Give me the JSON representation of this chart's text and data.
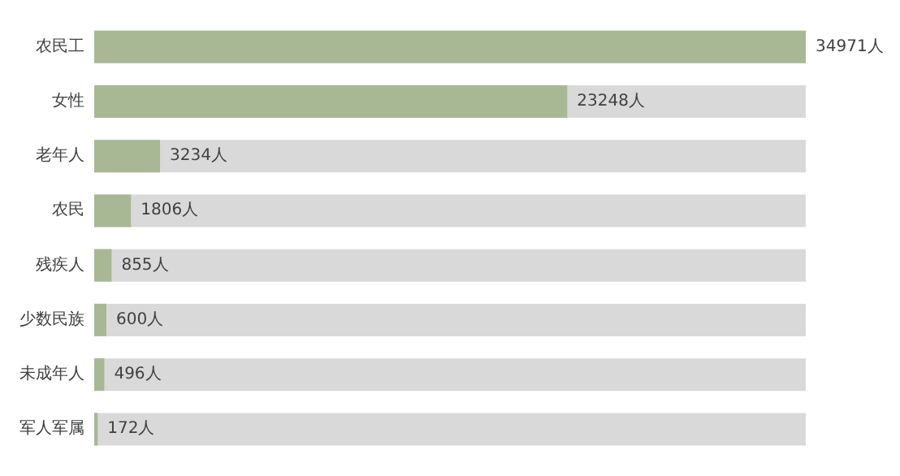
{
  "chart_data": {
    "type": "bar",
    "orientation": "horizontal",
    "categories": [
      "农民工",
      "女性",
      "老年人",
      "农民",
      "残疾人",
      "少数民族",
      "未成年人",
      "军人军属"
    ],
    "values": [
      34971,
      23248,
      3234,
      1806,
      855,
      600,
      496,
      172
    ],
    "value_labels": [
      "34971人",
      "23248人",
      "3234人",
      "1806人",
      "855人",
      "600人",
      "496人",
      "172人"
    ],
    "color": "#a8b894"
  }
}
